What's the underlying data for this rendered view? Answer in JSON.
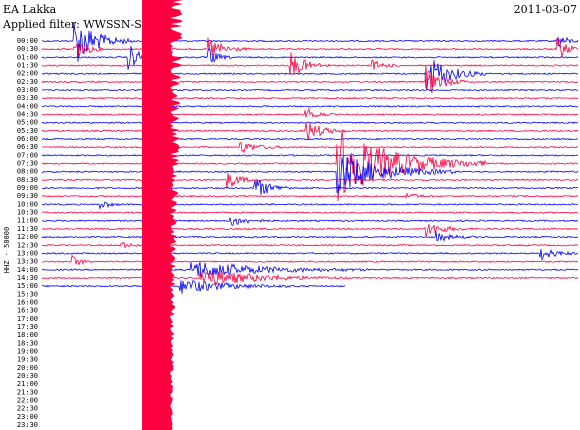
{
  "header": {
    "station": "EA Lakka",
    "date": "2011-03-07",
    "filter": "Applied filter: WWSSN-SP"
  },
  "axis_label": "HHZ - 50000",
  "times": [
    "00:00",
    "00:30",
    "01:00",
    "01:30",
    "02:00",
    "02:30",
    "03:00",
    "03:30",
    "04:00",
    "04:30",
    "05:00",
    "05:30",
    "06:00",
    "06:30",
    "07:00",
    "07:30",
    "08:00",
    "08:30",
    "09:00",
    "09:30",
    "10:00",
    "10:30",
    "11:00",
    "11:30",
    "12:00",
    "12:30",
    "13:00",
    "13:30",
    "14:00",
    "14:30",
    "15:00",
    "15:30",
    "16:00",
    "16:30",
    "17:00",
    "17:30",
    "18:00",
    "18:30",
    "19:00",
    "19:30",
    "20:00",
    "20:30",
    "21:00",
    "21:30",
    "22:00",
    "22:30",
    "23:00",
    "23:30"
  ]
}
